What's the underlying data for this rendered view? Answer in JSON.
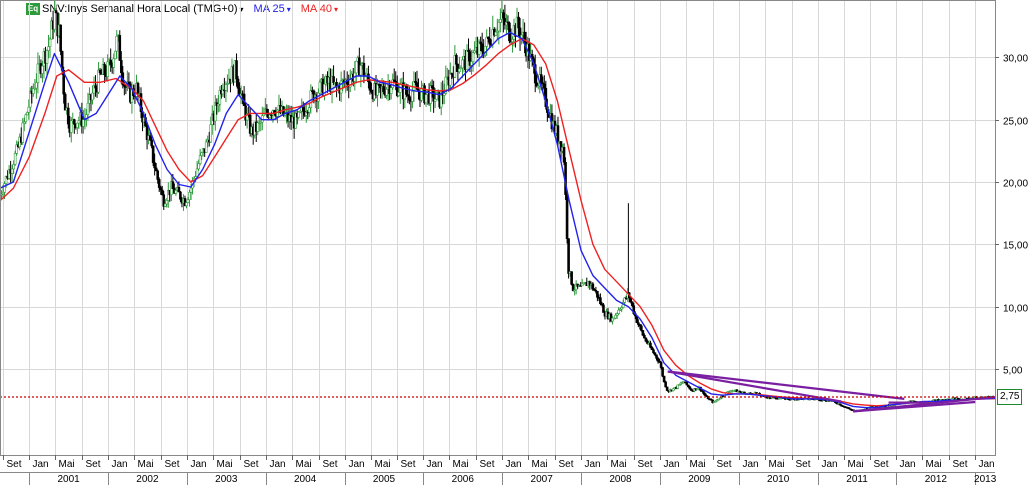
{
  "header": {
    "eq_badge": "Eq",
    "symbol_text": "SNV:Inys Semanal Hora Local (TMG+0)",
    "dropdown_glyph": "▾",
    "ma25_label": "MA 25",
    "ma40_label": "MA 40"
  },
  "colors": {
    "ma25": "#2222ee",
    "ma40": "#ee2222",
    "up_candle": "#2e9a3b",
    "down_candle": "#000000",
    "trendline": "#7a1fa2",
    "price_line": "#cc0000",
    "grid": "#d8d8d8"
  },
  "chart_data": {
    "type": "candlestick",
    "title": "SNV:Inys Semanal Hora Local (TMG+0)",
    "y_ticks": [
      "5,00",
      "10,00",
      "15,00",
      "20,00",
      "25,00",
      "30,00"
    ],
    "y_tick_values": [
      5,
      10,
      15,
      20,
      25,
      30
    ],
    "ylim": [
      -1.9,
      34.6
    ],
    "xlim": [
      2000.63,
      2013.25
    ],
    "current_price_label": "2,75",
    "current_price": 2.75,
    "x_month_ticks": [
      {
        "t": 2000.67,
        "label": "Set"
      },
      {
        "t": 2001.0,
        "label": "Jan"
      },
      {
        "t": 2001.33,
        "label": "Mai"
      },
      {
        "t": 2001.67,
        "label": "Set"
      },
      {
        "t": 2002.0,
        "label": "Jan"
      },
      {
        "t": 2002.33,
        "label": "Mai"
      },
      {
        "t": 2002.67,
        "label": "Set"
      },
      {
        "t": 2003.0,
        "label": "Jan"
      },
      {
        "t": 2003.33,
        "label": "Mai"
      },
      {
        "t": 2003.67,
        "label": "Set"
      },
      {
        "t": 2004.0,
        "label": "Jan"
      },
      {
        "t": 2004.33,
        "label": "Mai"
      },
      {
        "t": 2004.67,
        "label": "Set"
      },
      {
        "t": 2005.0,
        "label": "Jan"
      },
      {
        "t": 2005.33,
        "label": "Mai"
      },
      {
        "t": 2005.67,
        "label": "Set"
      },
      {
        "t": 2006.0,
        "label": "Jan"
      },
      {
        "t": 2006.33,
        "label": "Mai"
      },
      {
        "t": 2006.67,
        "label": "Set"
      },
      {
        "t": 2007.0,
        "label": "Jan"
      },
      {
        "t": 2007.33,
        "label": "Mai"
      },
      {
        "t": 2007.67,
        "label": "Set"
      },
      {
        "t": 2008.0,
        "label": "Jan"
      },
      {
        "t": 2008.33,
        "label": "Mai"
      },
      {
        "t": 2008.67,
        "label": "Set"
      },
      {
        "t": 2009.0,
        "label": "Jan"
      },
      {
        "t": 2009.33,
        "label": "Mai"
      },
      {
        "t": 2009.67,
        "label": "Set"
      },
      {
        "t": 2010.0,
        "label": "Jan"
      },
      {
        "t": 2010.33,
        "label": "Mai"
      },
      {
        "t": 2010.67,
        "label": "Set"
      },
      {
        "t": 2011.0,
        "label": "Jan"
      },
      {
        "t": 2011.33,
        "label": "Mai"
      },
      {
        "t": 2011.67,
        "label": "Set"
      },
      {
        "t": 2012.0,
        "label": "Jan"
      },
      {
        "t": 2012.33,
        "label": "Mai"
      },
      {
        "t": 2012.67,
        "label": "Set"
      },
      {
        "t": 2013.0,
        "label": "Jan"
      }
    ],
    "x_year_ticks": [
      {
        "start": 2001.0,
        "label": "2001"
      },
      {
        "start": 2002.0,
        "label": "2002"
      },
      {
        "start": 2003.0,
        "label": "2003"
      },
      {
        "start": 2004.0,
        "label": "2004"
      },
      {
        "start": 2005.0,
        "label": "2005"
      },
      {
        "start": 2006.0,
        "label": "2006"
      },
      {
        "start": 2007.0,
        "label": "2007"
      },
      {
        "start": 2008.0,
        "label": "2008"
      },
      {
        "start": 2009.0,
        "label": "2009"
      },
      {
        "start": 2010.0,
        "label": "2010"
      },
      {
        "start": 2011.0,
        "label": "2011"
      },
      {
        "start": 2012.0,
        "label": "2012"
      },
      {
        "start": 2013.0,
        "label": "2013"
      }
    ],
    "price_path": [
      [
        2000.63,
        19.0
      ],
      [
        2000.75,
        21.0
      ],
      [
        2000.85,
        22.5
      ],
      [
        2000.95,
        25.0
      ],
      [
        2001.05,
        27.5
      ],
      [
        2001.15,
        29.5
      ],
      [
        2001.25,
        31.0
      ],
      [
        2001.32,
        33.5
      ],
      [
        2001.38,
        32.0
      ],
      [
        2001.45,
        26.5
      ],
      [
        2001.52,
        24.5
      ],
      [
        2001.6,
        25.0
      ],
      [
        2001.7,
        25.0
      ],
      [
        2001.8,
        27.0
      ],
      [
        2001.9,
        28.5
      ],
      [
        2002.0,
        29.0
      ],
      [
        2002.06,
        30.0
      ],
      [
        2002.12,
        31.5
      ],
      [
        2002.2,
        28.0
      ],
      [
        2002.28,
        27.0
      ],
      [
        2002.36,
        27.5
      ],
      [
        2002.45,
        25.0
      ],
      [
        2002.55,
        22.5
      ],
      [
        2002.62,
        20.5
      ],
      [
        2002.7,
        18.5
      ],
      [
        2002.8,
        19.5
      ],
      [
        2002.9,
        19.0
      ],
      [
        2002.98,
        18.5
      ],
      [
        2003.05,
        19.5
      ],
      [
        2003.15,
        21.5
      ],
      [
        2003.25,
        23.0
      ],
      [
        2003.35,
        25.5
      ],
      [
        2003.45,
        28.0
      ],
      [
        2003.55,
        28.5
      ],
      [
        2003.62,
        29.0
      ],
      [
        2003.72,
        26.0
      ],
      [
        2003.82,
        24.0
      ],
      [
        2003.92,
        24.5
      ],
      [
        2004.0,
        25.5
      ],
      [
        2004.1,
        26.0
      ],
      [
        2004.2,
        25.5
      ],
      [
        2004.3,
        25.0
      ],
      [
        2004.4,
        24.8
      ],
      [
        2004.5,
        26.0
      ],
      [
        2004.6,
        27.0
      ],
      [
        2004.7,
        27.5
      ],
      [
        2004.8,
        28.0
      ],
      [
        2004.9,
        27.5
      ],
      [
        2005.0,
        28.0
      ],
      [
        2005.1,
        28.5
      ],
      [
        2005.2,
        29.5
      ],
      [
        2005.3,
        28.0
      ],
      [
        2005.4,
        27.0
      ],
      [
        2005.5,
        27.5
      ],
      [
        2005.6,
        28.0
      ],
      [
        2005.7,
        27.5
      ],
      [
        2005.8,
        27.0
      ],
      [
        2005.9,
        27.5
      ],
      [
        2006.0,
        27.0
      ],
      [
        2006.1,
        27.0
      ],
      [
        2006.2,
        26.5
      ],
      [
        2006.3,
        28.0
      ],
      [
        2006.4,
        29.5
      ],
      [
        2006.5,
        29.5
      ],
      [
        2006.6,
        30.0
      ],
      [
        2006.7,
        30.5
      ],
      [
        2006.8,
        31.0
      ],
      [
        2006.9,
        32.5
      ],
      [
        2007.0,
        33.0
      ],
      [
        2007.1,
        32.0
      ],
      [
        2007.2,
        32.5
      ],
      [
        2007.3,
        31.0
      ],
      [
        2007.4,
        29.0
      ],
      [
        2007.5,
        27.5
      ],
      [
        2007.58,
        26.0
      ],
      [
        2007.65,
        24.5
      ],
      [
        2007.72,
        23.5
      ],
      [
        2007.78,
        22.5
      ],
      [
        2007.84,
        13.0
      ],
      [
        2007.9,
        11.5
      ],
      [
        2008.0,
        11.5
      ],
      [
        2008.1,
        12.0
      ],
      [
        2008.2,
        11.0
      ],
      [
        2008.3,
        9.5
      ],
      [
        2008.4,
        9.0
      ],
      [
        2008.5,
        10.0
      ],
      [
        2008.6,
        11.0
      ],
      [
        2008.7,
        9.0
      ],
      [
        2008.8,
        7.5
      ],
      [
        2008.9,
        6.5
      ],
      [
        2009.0,
        5.5
      ],
      [
        2009.05,
        4.0
      ],
      [
        2009.1,
        3.2
      ],
      [
        2009.2,
        3.5
      ],
      [
        2009.3,
        4.0
      ],
      [
        2009.4,
        3.3
      ],
      [
        2009.5,
        3.5
      ],
      [
        2009.58,
        2.8
      ],
      [
        2009.68,
        2.3
      ],
      [
        2009.78,
        2.8
      ],
      [
        2009.9,
        3.3
      ],
      [
        2010.0,
        3.2
      ],
      [
        2010.1,
        3.0
      ],
      [
        2010.2,
        3.1
      ],
      [
        2010.3,
        2.8
      ],
      [
        2010.4,
        2.7
      ],
      [
        2010.5,
        2.7
      ],
      [
        2010.6,
        2.6
      ],
      [
        2010.7,
        2.6
      ],
      [
        2010.8,
        2.6
      ],
      [
        2010.9,
        2.6
      ],
      [
        2011.0,
        2.6
      ],
      [
        2011.1,
        2.5
      ],
      [
        2011.2,
        2.4
      ],
      [
        2011.3,
        2.1
      ],
      [
        2011.4,
        1.8
      ],
      [
        2011.5,
        1.6
      ],
      [
        2011.6,
        1.8
      ],
      [
        2011.7,
        2.0
      ],
      [
        2011.8,
        2.0
      ],
      [
        2011.9,
        2.1
      ],
      [
        2012.0,
        2.2
      ],
      [
        2012.1,
        2.3
      ],
      [
        2012.2,
        2.4
      ],
      [
        2012.3,
        2.3
      ],
      [
        2012.4,
        2.4
      ],
      [
        2012.5,
        2.5
      ],
      [
        2012.6,
        2.5
      ],
      [
        2012.7,
        2.6
      ],
      [
        2012.8,
        2.6
      ],
      [
        2012.9,
        2.6
      ],
      [
        2013.0,
        2.7
      ],
      [
        2013.1,
        2.7
      ],
      [
        2013.2,
        2.75
      ],
      [
        2013.25,
        2.75
      ]
    ],
    "ma25_path": [
      [
        2000.63,
        19.5
      ],
      [
        2000.8,
        20.0
      ],
      [
        2001.0,
        24.0
      ],
      [
        2001.2,
        28.0
      ],
      [
        2001.32,
        30.3
      ],
      [
        2001.5,
        28.0
      ],
      [
        2001.7,
        25.0
      ],
      [
        2001.85,
        25.5
      ],
      [
        2002.0,
        27.0
      ],
      [
        2002.15,
        28.5
      ],
      [
        2002.3,
        27.5
      ],
      [
        2002.45,
        25.5
      ],
      [
        2002.6,
        23.0
      ],
      [
        2002.75,
        21.0
      ],
      [
        2002.9,
        19.8
      ],
      [
        2003.05,
        19.6
      ],
      [
        2003.2,
        21.0
      ],
      [
        2003.35,
        23.0
      ],
      [
        2003.5,
        25.5
      ],
      [
        2003.65,
        27.0
      ],
      [
        2003.8,
        26.0
      ],
      [
        2003.95,
        25.0
      ],
      [
        2004.1,
        25.0
      ],
      [
        2004.25,
        25.5
      ],
      [
        2004.4,
        25.8
      ],
      [
        2004.55,
        26.5
      ],
      [
        2004.7,
        27.0
      ],
      [
        2004.85,
        27.5
      ],
      [
        2005.0,
        28.0
      ],
      [
        2005.15,
        28.5
      ],
      [
        2005.3,
        28.5
      ],
      [
        2005.45,
        28.0
      ],
      [
        2005.6,
        27.8
      ],
      [
        2005.75,
        27.5
      ],
      [
        2005.9,
        27.3
      ],
      [
        2006.05,
        27.2
      ],
      [
        2006.2,
        27.0
      ],
      [
        2006.35,
        27.5
      ],
      [
        2006.5,
        28.5
      ],
      [
        2006.65,
        29.5
      ],
      [
        2006.8,
        30.5
      ],
      [
        2006.95,
        31.5
      ],
      [
        2007.1,
        32.0
      ],
      [
        2007.25,
        31.5
      ],
      [
        2007.4,
        29.5
      ],
      [
        2007.55,
        26.5
      ],
      [
        2007.7,
        23.0
      ],
      [
        2007.85,
        18.5
      ],
      [
        2008.0,
        14.5
      ],
      [
        2008.15,
        12.5
      ],
      [
        2008.3,
        11.5
      ],
      [
        2008.45,
        10.5
      ],
      [
        2008.6,
        10.0
      ],
      [
        2008.75,
        9.0
      ],
      [
        2008.9,
        7.5
      ],
      [
        2009.05,
        5.5
      ],
      [
        2009.2,
        4.5
      ],
      [
        2009.35,
        4.0
      ],
      [
        2009.5,
        3.5
      ],
      [
        2009.65,
        3.0
      ],
      [
        2009.8,
        2.9
      ],
      [
        2009.95,
        3.0
      ],
      [
        2010.1,
        3.0
      ],
      [
        2010.25,
        2.9
      ],
      [
        2010.4,
        2.8
      ],
      [
        2010.55,
        2.7
      ],
      [
        2010.7,
        2.6
      ],
      [
        2010.85,
        2.6
      ],
      [
        2011.0,
        2.6
      ],
      [
        2011.15,
        2.5
      ],
      [
        2011.3,
        2.3
      ],
      [
        2011.45,
        2.0
      ],
      [
        2011.6,
        1.9
      ],
      [
        2011.75,
        1.9
      ],
      [
        2011.9,
        2.1
      ],
      [
        2012.05,
        2.2
      ],
      [
        2012.2,
        2.3
      ],
      [
        2012.35,
        2.4
      ],
      [
        2012.5,
        2.4
      ],
      [
        2012.65,
        2.5
      ],
      [
        2012.8,
        2.5
      ],
      [
        2012.95,
        2.6
      ],
      [
        2013.1,
        2.6
      ],
      [
        2013.25,
        2.65
      ]
    ],
    "ma40_path": [
      [
        2000.63,
        18.5
      ],
      [
        2000.8,
        19.5
      ],
      [
        2001.0,
        22.0
      ],
      [
        2001.2,
        25.5
      ],
      [
        2001.35,
        28.5
      ],
      [
        2001.5,
        29.0
      ],
      [
        2001.7,
        28.0
      ],
      [
        2001.9,
        28.0
      ],
      [
        2002.1,
        28.3
      ],
      [
        2002.3,
        27.5
      ],
      [
        2002.45,
        26.5
      ],
      [
        2002.6,
        24.5
      ],
      [
        2002.75,
        22.5
      ],
      [
        2002.9,
        21.0
      ],
      [
        2003.05,
        20.0
      ],
      [
        2003.2,
        20.5
      ],
      [
        2003.35,
        22.0
      ],
      [
        2003.5,
        23.5
      ],
      [
        2003.65,
        25.0
      ],
      [
        2003.8,
        25.5
      ],
      [
        2003.95,
        25.5
      ],
      [
        2004.1,
        25.5
      ],
      [
        2004.25,
        25.8
      ],
      [
        2004.4,
        26.0
      ],
      [
        2004.55,
        26.3
      ],
      [
        2004.7,
        26.8
      ],
      [
        2004.85,
        27.2
      ],
      [
        2005.0,
        27.6
      ],
      [
        2005.15,
        28.0
      ],
      [
        2005.3,
        28.2
      ],
      [
        2005.45,
        28.1
      ],
      [
        2005.6,
        28.0
      ],
      [
        2005.75,
        27.8
      ],
      [
        2005.9,
        27.6
      ],
      [
        2006.05,
        27.4
      ],
      [
        2006.2,
        27.3
      ],
      [
        2006.35,
        27.4
      ],
      [
        2006.5,
        27.9
      ],
      [
        2006.65,
        28.6
      ],
      [
        2006.8,
        29.4
      ],
      [
        2006.95,
        30.3
      ],
      [
        2007.1,
        31.0
      ],
      [
        2007.25,
        31.5
      ],
      [
        2007.4,
        31.0
      ],
      [
        2007.55,
        29.5
      ],
      [
        2007.7,
        26.5
      ],
      [
        2007.85,
        22.5
      ],
      [
        2008.0,
        18.5
      ],
      [
        2008.15,
        15.0
      ],
      [
        2008.3,
        13.0
      ],
      [
        2008.45,
        12.0
      ],
      [
        2008.6,
        11.0
      ],
      [
        2008.75,
        10.0
      ],
      [
        2008.9,
        8.5
      ],
      [
        2009.05,
        6.5
      ],
      [
        2009.2,
        5.3
      ],
      [
        2009.35,
        4.5
      ],
      [
        2009.5,
        3.9
      ],
      [
        2009.65,
        3.4
      ],
      [
        2009.8,
        3.1
      ],
      [
        2009.95,
        3.0
      ],
      [
        2010.1,
        3.0
      ],
      [
        2010.25,
        2.95
      ],
      [
        2010.4,
        2.85
      ],
      [
        2010.55,
        2.75
      ],
      [
        2010.7,
        2.7
      ],
      [
        2010.85,
        2.65
      ],
      [
        2011.0,
        2.6
      ],
      [
        2011.15,
        2.55
      ],
      [
        2011.3,
        2.4
      ],
      [
        2011.45,
        2.2
      ],
      [
        2011.6,
        2.1
      ],
      [
        2011.75,
        2.05
      ],
      [
        2011.9,
        2.1
      ],
      [
        2012.05,
        2.2
      ],
      [
        2012.2,
        2.3
      ],
      [
        2012.35,
        2.35
      ],
      [
        2012.5,
        2.4
      ],
      [
        2012.65,
        2.45
      ],
      [
        2012.8,
        2.5
      ],
      [
        2012.95,
        2.55
      ],
      [
        2013.1,
        2.6
      ],
      [
        2013.25,
        2.62
      ]
    ],
    "spike": {
      "t": 2008.6,
      "high": 18.3,
      "low": 11.0
    },
    "trendlines": [
      {
        "from": [
          2009.1,
          4.8
        ],
        "to": [
          2012.1,
          2.6
        ]
      },
      {
        "from": [
          2009.1,
          4.8
        ],
        "to": [
          2011.3,
          2.4
        ]
      },
      {
        "from": [
          2011.45,
          1.6
        ],
        "to": [
          2013.25,
          2.75
        ]
      },
      {
        "from": [
          2011.45,
          1.6
        ],
        "to": [
          2013.0,
          2.35
        ]
      },
      {
        "from": [
          2011.9,
          2.3
        ],
        "to": [
          2012.4,
          2.3
        ]
      }
    ],
    "grid": true
  }
}
